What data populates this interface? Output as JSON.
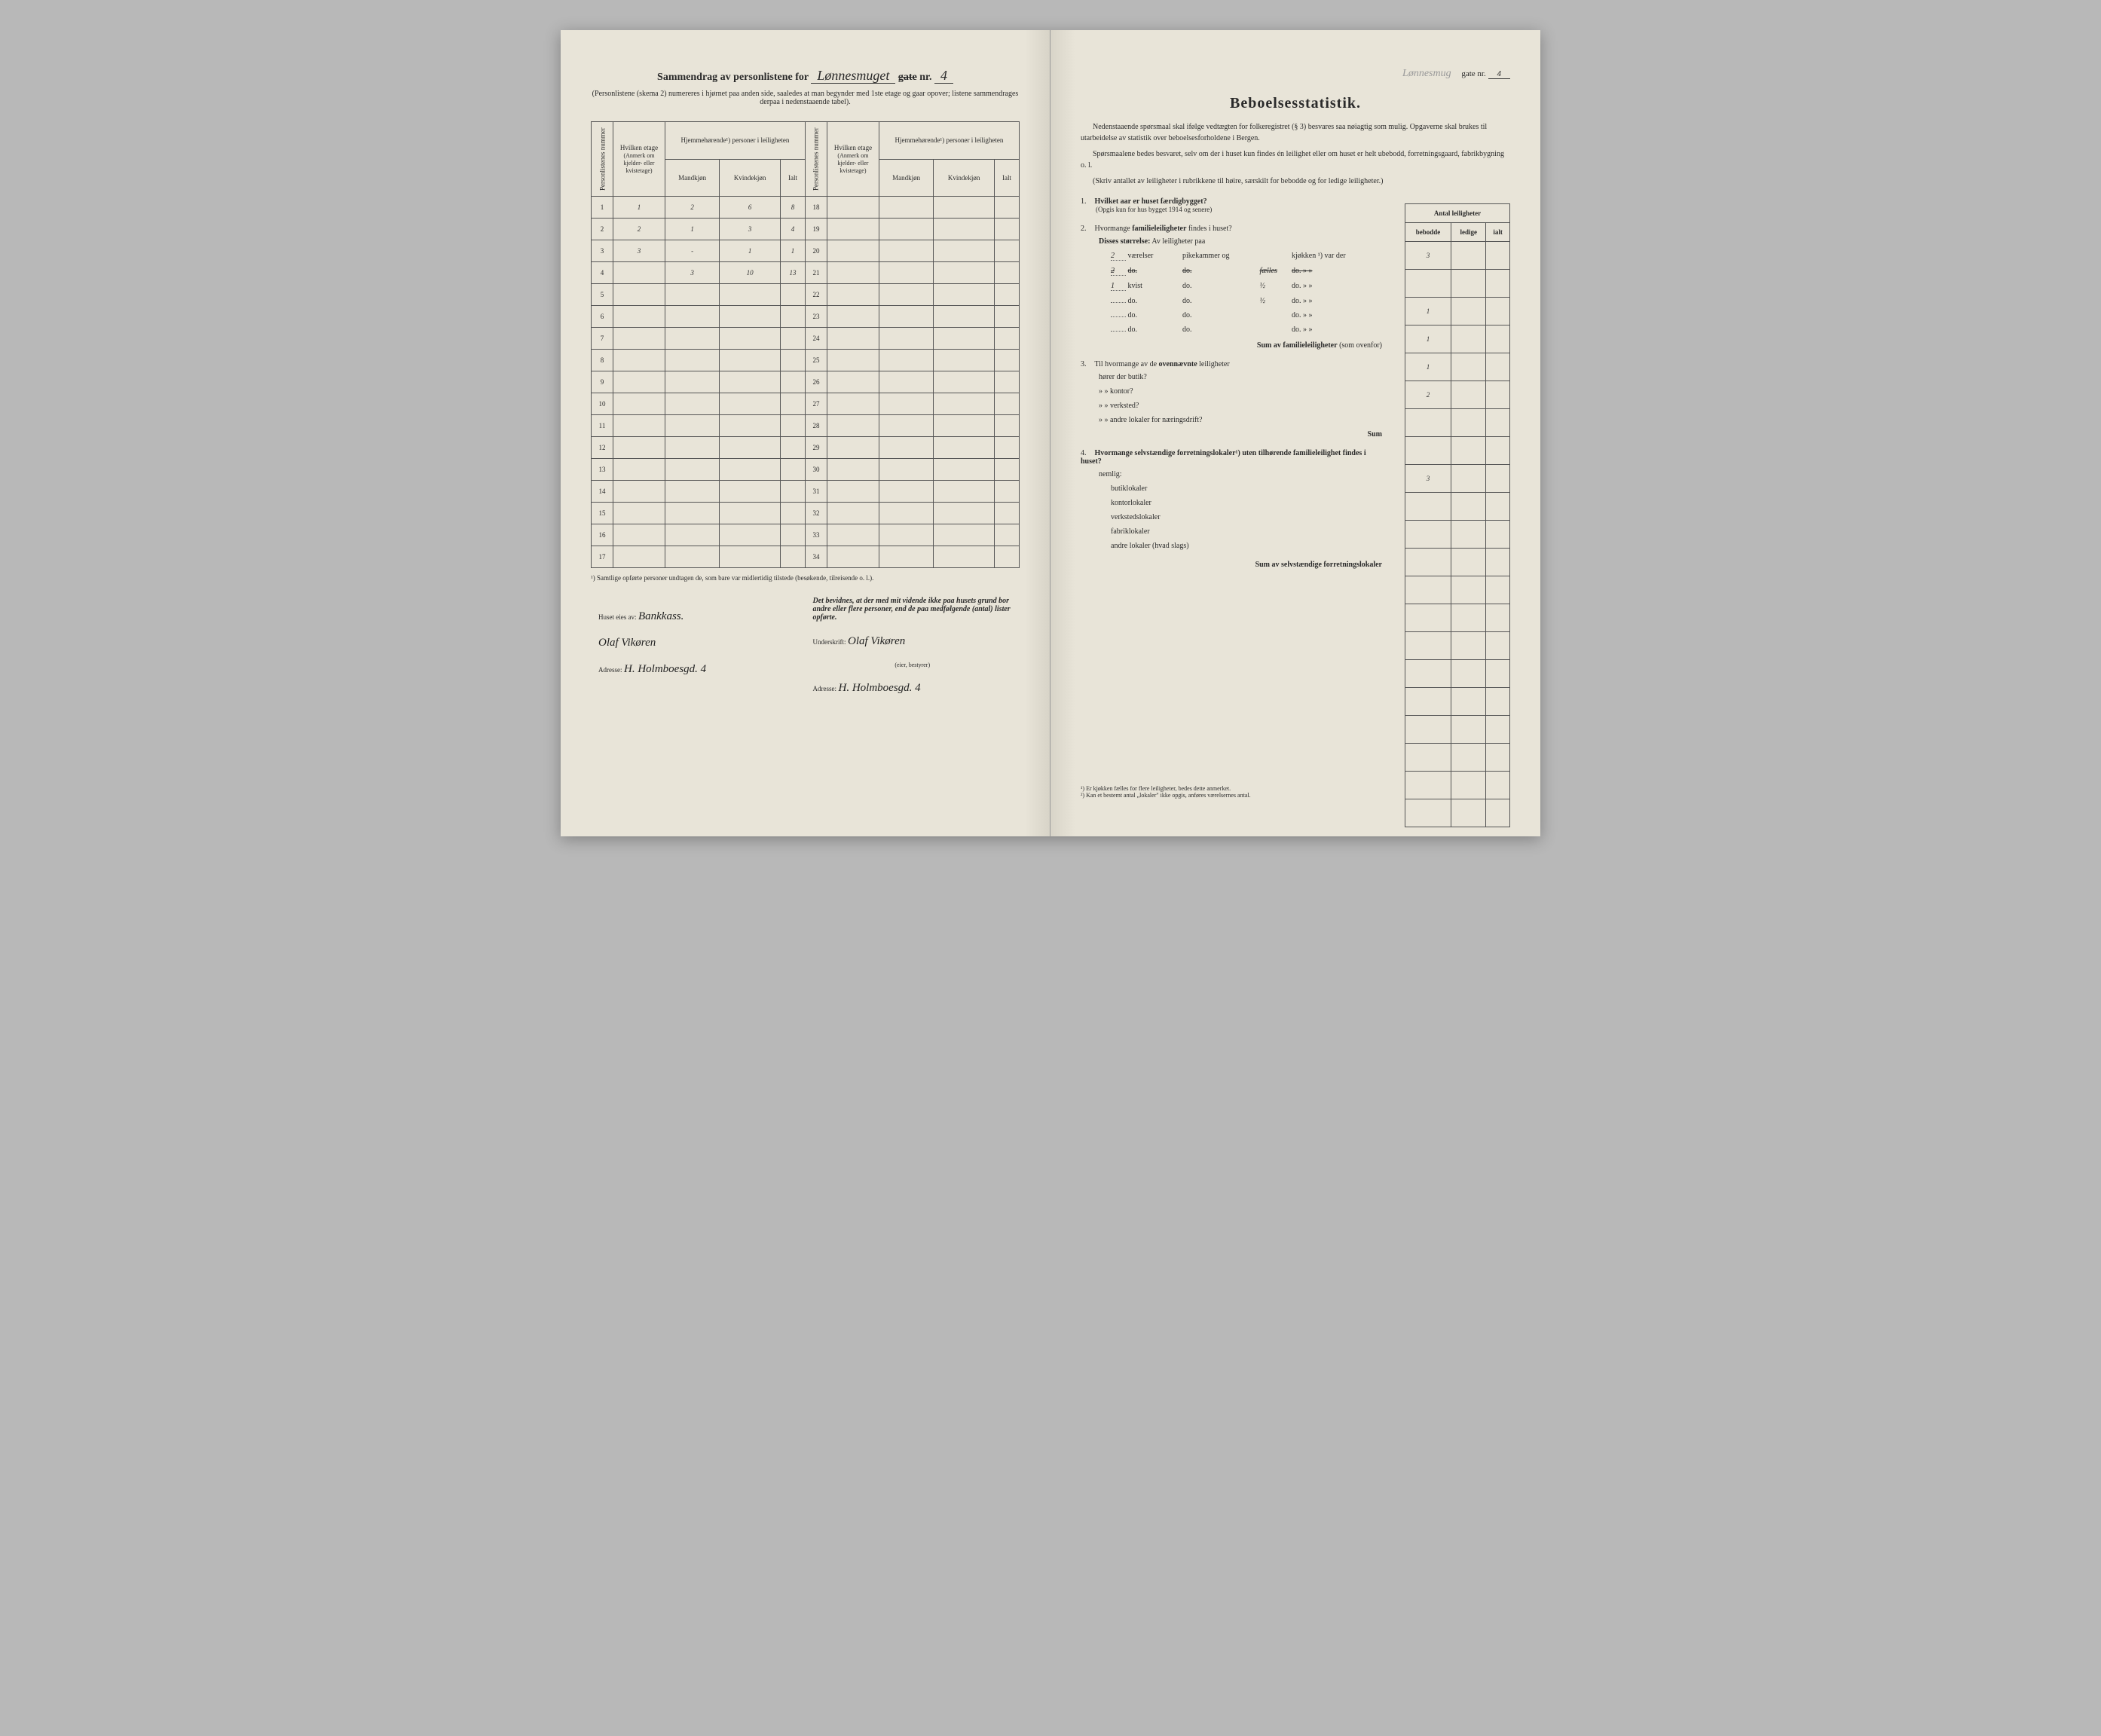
{
  "leftPage": {
    "titlePrefix": "Sammendrag av personlistene for",
    "streetName": "Lønnesmuget",
    "strikeWord": "gate",
    "nrLabel": "nr.",
    "nrValue": "4",
    "subtitle": "(Personlistene (skema 2) numereres i hjørnet paa anden side, saaledes at man begynder med 1ste etage og gaar opover; listene sammendrages derpaa i nedenstaaende tabel).",
    "headers": {
      "col1": "Personlistenes nummer",
      "col2": "Hvilken etage",
      "col2sub": "(Anmerk om kjelder- eller kvistetage)",
      "col3": "Hjemmehørende¹) personer i leiligheten",
      "col3a": "Mandkjøn",
      "col3b": "Kvindekjøn",
      "col3c": "Ialt"
    },
    "rows": [
      {
        "n": "1",
        "etage": "1",
        "m": "2",
        "k": "6",
        "i": "8"
      },
      {
        "n": "2",
        "etage": "2",
        "m": "1",
        "k": "3",
        "i": "4"
      },
      {
        "n": "3",
        "etage": "3",
        "m": "-",
        "k": "1",
        "i": "1"
      },
      {
        "n": "4",
        "etage": "",
        "m": "3",
        "k": "10",
        "i": "13"
      },
      {
        "n": "5",
        "etage": "",
        "m": "",
        "k": "",
        "i": ""
      },
      {
        "n": "6",
        "etage": "",
        "m": "",
        "k": "",
        "i": ""
      },
      {
        "n": "7",
        "etage": "",
        "m": "",
        "k": "",
        "i": ""
      },
      {
        "n": "8",
        "etage": "",
        "m": "",
        "k": "",
        "i": ""
      },
      {
        "n": "9",
        "etage": "",
        "m": "",
        "k": "",
        "i": ""
      },
      {
        "n": "10",
        "etage": "",
        "m": "",
        "k": "",
        "i": ""
      },
      {
        "n": "11",
        "etage": "",
        "m": "",
        "k": "",
        "i": ""
      },
      {
        "n": "12",
        "etage": "",
        "m": "",
        "k": "",
        "i": ""
      },
      {
        "n": "13",
        "etage": "",
        "m": "",
        "k": "",
        "i": ""
      },
      {
        "n": "14",
        "etage": "",
        "m": "",
        "k": "",
        "i": ""
      },
      {
        "n": "15",
        "etage": "",
        "m": "",
        "k": "",
        "i": ""
      },
      {
        "n": "16",
        "etage": "",
        "m": "",
        "k": "",
        "i": ""
      },
      {
        "n": "17",
        "etage": "",
        "m": "",
        "k": "",
        "i": ""
      }
    ],
    "rows2": [
      {
        "n": "18"
      },
      {
        "n": "19"
      },
      {
        "n": "20"
      },
      {
        "n": "21"
      },
      {
        "n": "22"
      },
      {
        "n": "23"
      },
      {
        "n": "24"
      },
      {
        "n": "25"
      },
      {
        "n": "26"
      },
      {
        "n": "27"
      },
      {
        "n": "28"
      },
      {
        "n": "29"
      },
      {
        "n": "30"
      },
      {
        "n": "31"
      },
      {
        "n": "32"
      },
      {
        "n": "33"
      },
      {
        "n": "34"
      }
    ],
    "footnote1": "¹) Samtlige opførte personer undtagen de, som bare var midlertidig tilstede (besøkende, tilreisende o. l.).",
    "sig": {
      "ownerLabel": "Huset eies av:",
      "ownerName1": "Bankkass.",
      "ownerName2": "Olaf Vikøren",
      "addrLabel": "Adresse:",
      "addr": "H. Holmboesgd. 4",
      "attestation": "Det bevidnes, at der med mit vidende ikke paa husets grund bor andre eller flere personer, end de paa medfølgende (antal) lister opførte.",
      "underskriftLabel": "Underskrift:",
      "signature": "Olaf Vikøren",
      "sigSub": "(eier, bestyrer)",
      "addr2": "H. Holmboesgd. 4"
    }
  },
  "rightPage": {
    "faintStreet": "Lønnesmug",
    "gateLabel": "gate nr.",
    "gateNr": "4",
    "title": "Beboelsesstatistik.",
    "intro1": "Nedenstaaende spørsmaal skal ifølge vedtægten for folkeregistret (§ 3) besvares saa nøiagtig som mulig. Opgaverne skal brukes til utarbeidelse av statistik over beboelsesforholdene i Bergen.",
    "intro2": "Spørsmaalene bedes besvaret, selv om der i huset kun findes én leilighet eller om huset er helt ubebodd, forretningsgaard, fabrikbygning o. l.",
    "intro3": "(Skriv antallet av leiligheter i rubrikkene til høire, særskilt for bebodde og for ledige leiligheter.)",
    "tableHeader": {
      "main": "Antal leiligheter",
      "c1": "bebodde",
      "c2": "ledige",
      "c3": "ialt"
    },
    "q1": {
      "num": "1.",
      "text": "Hvilket aar er huset færdigbygget?",
      "sub": "(Opgis kun for hus bygget 1914 og senere)"
    },
    "q2": {
      "num": "2.",
      "text": "Hvormange ",
      "bold": "familieleiligheter",
      "text2": " findes i huset?",
      "headerVal": "3",
      "subTitle": "Disses størrelse:",
      "subText": "Av leiligheter paa",
      "rows": [
        {
          "v": "2",
          "l": "værelser",
          "p": "pikekammer og",
          "frac": "",
          "k": "kjøkken ¹) var der",
          "val": "1"
        },
        {
          "v": "2",
          "l": "do.",
          "p": "do.",
          "frac": "fælles",
          "k": "do.     »    »",
          "val": "1",
          "strike": true
        },
        {
          "v": "1",
          "l": "kvist",
          "p": "do.",
          "frac": "½",
          "k": "do.     »    »",
          "val": "1"
        },
        {
          "v": "",
          "l": "do.",
          "p": "do.",
          "frac": "½",
          "k": "do.     »    »",
          "val": "2"
        },
        {
          "v": "",
          "l": "do.",
          "p": "do.",
          "frac": "",
          "k": "do.     »    »",
          "val": ""
        },
        {
          "v": "",
          "l": "do.",
          "p": "do.",
          "frac": "",
          "k": "do.     »    »",
          "val": ""
        }
      ],
      "sumLabel": "Sum av familieleiligheter",
      "sumParen": "(som ovenfor)",
      "sumVal": "3"
    },
    "q3": {
      "num": "3.",
      "text": "Til hvormange av de ",
      "bold": "ovennævnte",
      "text2": " leiligheter",
      "items": [
        "hører der butik?",
        "»       »    kontor?",
        "»       »    verksted?",
        "»       »    andre lokaler for næringsdrift?"
      ],
      "sumLabel": "Sum"
    },
    "q4": {
      "num": "4.",
      "text": "Hvormange selvstændige forretningslokaler¹) uten tilhørende familieleilighet findes i huset?",
      "nemlig": "nemlig:",
      "items": [
        "butiklokaler",
        "kontorlokaler",
        "verkstedslokaler",
        "fabriklokaler",
        "andre lokaler (hvad slags)"
      ],
      "sumLabel": "Sum av selvstændige forretningslokaler"
    },
    "footnotes": [
      "¹) Er kjøkken fælles for flere leiligheter, bedes dette anmerket.",
      "²) Kan et bestemt antal „lokaler\" ikke opgis, anføres værelsernes antal."
    ],
    "rightVals": [
      "3",
      "",
      "1",
      "1",
      "1",
      "2",
      "",
      "",
      "3",
      "",
      "",
      "",
      "",
      "",
      "",
      "",
      "",
      "",
      "",
      "",
      ""
    ]
  }
}
